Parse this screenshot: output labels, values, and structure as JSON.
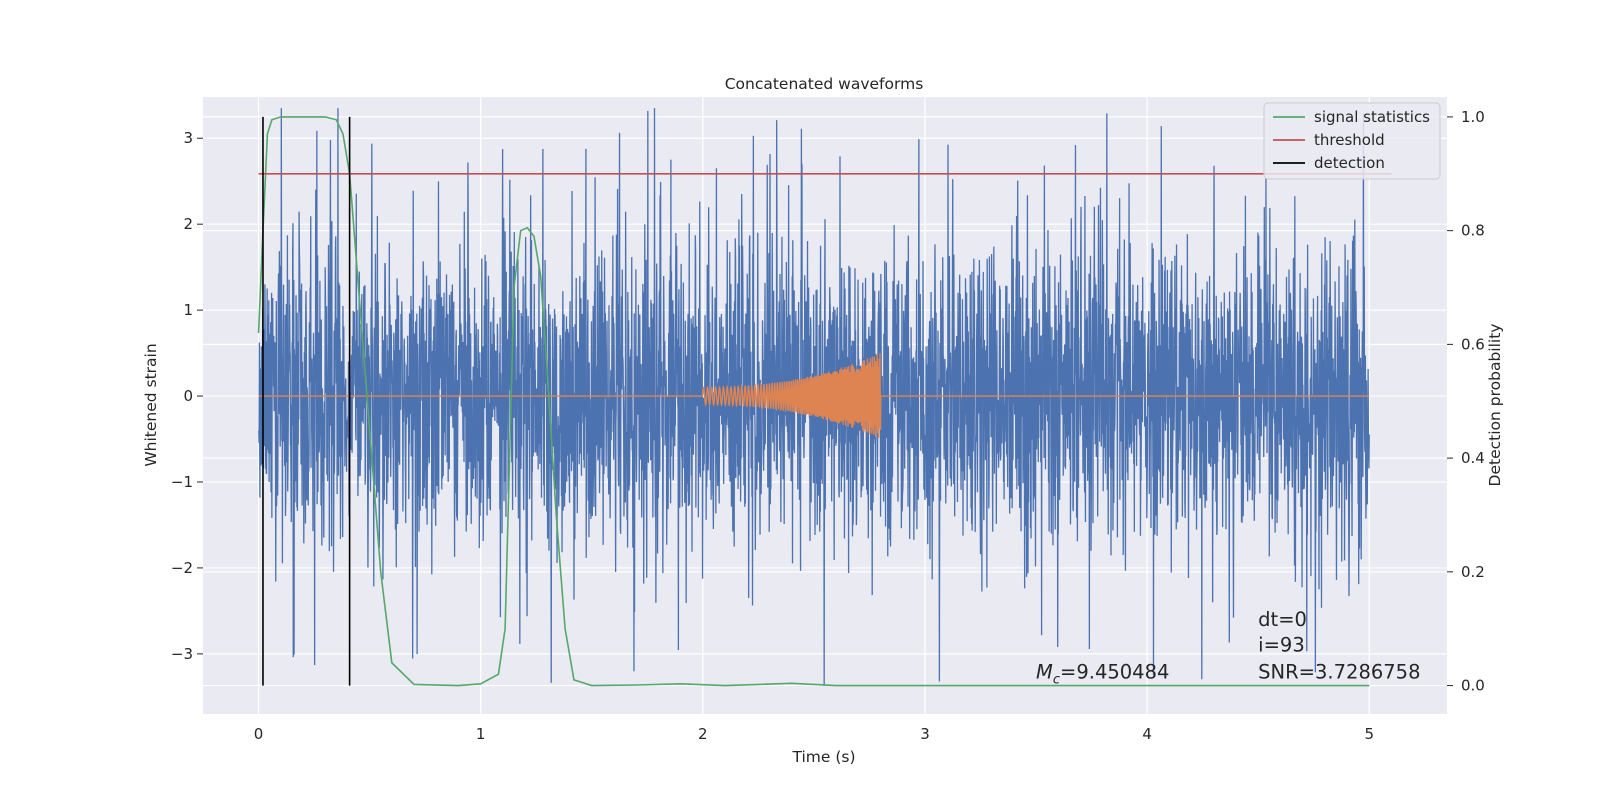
{
  "chart_data": {
    "type": "line",
    "title": "Concatenated waveforms",
    "xlabel": "Time (s)",
    "ylabel_left": "Whitened strain",
    "ylabel_right": "Detection probability",
    "xlim": [
      -0.25,
      5.35
    ],
    "ylim_left": [
      -3.7,
      3.48
    ],
    "ylim_right": [
      -0.05,
      1.035
    ],
    "x_ticks": [
      0,
      1,
      2,
      3,
      4,
      5
    ],
    "y_left_ticks": [
      -3,
      -2,
      -1,
      0,
      1,
      2,
      3
    ],
    "y_right_ticks": [
      0.0,
      0.2,
      0.4,
      0.6,
      0.8,
      1.0
    ],
    "grid": true,
    "legend_position": "top-right",
    "series": [
      {
        "name": "",
        "axis": "left",
        "color": "#4c72b0",
        "kind": "noise",
        "x_range": [
          0,
          5
        ],
        "typical_amplitude": 1.4,
        "peak_max": 3.35,
        "peak_min": -3.4
      },
      {
        "name": "",
        "axis": "left",
        "color": "#dd8452",
        "kind": "chirp",
        "x_range": [
          0,
          5
        ],
        "chirp_start": 2.0,
        "chirp_end": 2.8,
        "amplitude_start": 0.1,
        "amplitude_end": 0.5
      },
      {
        "name": "signal statistics",
        "axis": "right",
        "color": "#55a868",
        "x": [
          0,
          0.02,
          0.04,
          0.06,
          0.1,
          0.15,
          0.3,
          0.35,
          0.38,
          0.41,
          0.45,
          0.5,
          0.55,
          0.6,
          0.7,
          0.9,
          1.0,
          1.08,
          1.11,
          1.13,
          1.15,
          1.18,
          1.21,
          1.24,
          1.27,
          1.3,
          1.34,
          1.38,
          1.42,
          1.5,
          1.7,
          1.9,
          2.1,
          2.4,
          2.6,
          3.0,
          4.0,
          5.0
        ],
        "y": [
          0.62,
          0.8,
          0.97,
          0.995,
          1.0,
          1.0,
          1.0,
          0.995,
          0.97,
          0.9,
          0.7,
          0.45,
          0.2,
          0.04,
          0.002,
          0.0,
          0.003,
          0.02,
          0.1,
          0.4,
          0.7,
          0.8,
          0.805,
          0.79,
          0.72,
          0.55,
          0.3,
          0.1,
          0.01,
          0.0,
          0.001,
          0.003,
          0.0,
          0.004,
          0.0,
          0.0,
          0.0,
          0.0
        ]
      },
      {
        "name": "threshold",
        "axis": "right",
        "color": "#c44e52",
        "x": [
          0,
          5.1
        ],
        "y": [
          0.9,
          0.9
        ]
      },
      {
        "name": "detection",
        "axis": "right",
        "color": "#000000",
        "kind": "vlines",
        "x": [
          0.02,
          0.41
        ]
      }
    ],
    "annotations": [
      {
        "text": "dt=0",
        "x": 4.5,
        "y": 0.105
      },
      {
        "text": "i=93",
        "x": 4.5,
        "y": 0.06
      },
      {
        "text": "SNR=3.7286758",
        "x": 4.5,
        "y": 0.012
      },
      {
        "text": "=9.450484",
        "math_prefix": "M",
        "math_sub": "c",
        "x": 3.5,
        "y": 0.012
      }
    ]
  }
}
